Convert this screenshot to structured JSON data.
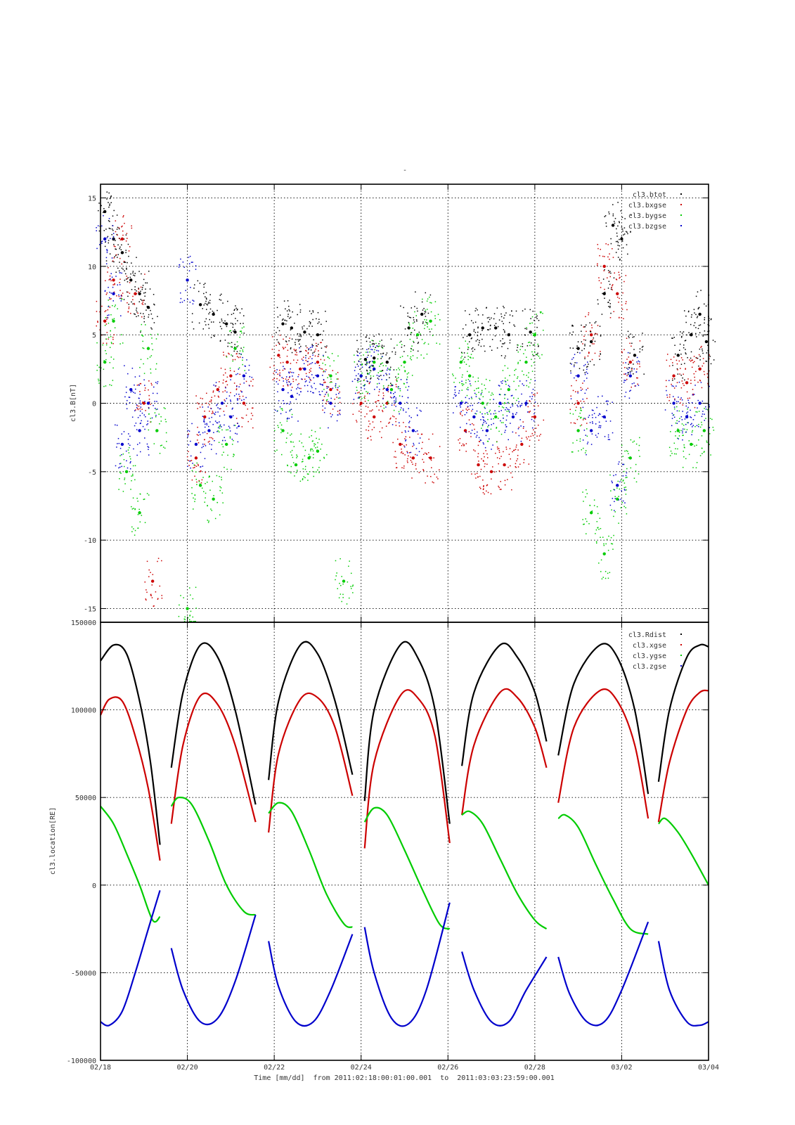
{
  "page_mark": "-",
  "chart_data": [
    {
      "type": "scatter",
      "title": "",
      "xlabel": "",
      "ylabel": "cl3.B[nT]",
      "xlim": [
        0,
        14
      ],
      "ylim": [
        -16,
        16
      ],
      "grid": true,
      "legend_position": "top-right",
      "yticks": [
        15,
        10,
        5,
        0,
        -5,
        -10,
        -15
      ],
      "ytick_labels": [
        "15",
        "10",
        "5",
        "0",
        "-5",
        "-10",
        "-15"
      ],
      "colors": {
        "cl3.btot": "#000000",
        "cl3.bxgse": "#cc0000",
        "cl3.bygse": "#00cc00",
        "cl3.bzgse": "#0000cc"
      },
      "legend": [
        "cl3.btot",
        "cl3.bxgse",
        "cl3.bygse",
        "cl3.bzgse"
      ],
      "series": [
        {
          "name": "cl3.btot",
          "x": [
            0.1,
            0.3,
            0.5,
            0.7,
            0.9,
            1.1,
            2.3,
            2.6,
            2.9,
            3.1,
            4.2,
            4.4,
            4.7,
            5.0,
            6.1,
            6.3,
            6.6,
            7.1,
            7.4,
            8.5,
            8.8,
            9.1,
            9.4,
            9.9,
            11.0,
            11.3,
            11.6,
            11.8,
            12.0,
            12.3,
            13.3,
            13.6,
            13.8,
            13.95
          ],
          "y": [
            14,
            12,
            11,
            9,
            8,
            7,
            7.2,
            6.5,
            5.8,
            5.2,
            5.8,
            5.5,
            5.2,
            5.0,
            3.2,
            3.3,
            3.0,
            5.5,
            6.5,
            5.0,
            5.5,
            5.5,
            5.0,
            5.2,
            4.0,
            4.5,
            8.0,
            13.0,
            12.0,
            3.5,
            3.5,
            5.0,
            6.5,
            4.5
          ]
        },
        {
          "name": "cl3.bxgse",
          "x": [
            0.1,
            0.3,
            0.5,
            0.8,
            1.0,
            1.2,
            2.2,
            2.4,
            2.7,
            3.0,
            3.3,
            4.1,
            4.3,
            4.6,
            5.0,
            5.3,
            6.0,
            6.3,
            6.6,
            6.9,
            7.2,
            7.6,
            8.4,
            8.7,
            9.0,
            9.3,
            9.7,
            10.0,
            11.0,
            11.3,
            11.6,
            11.9,
            12.2,
            13.2,
            13.5,
            13.8
          ],
          "y": [
            6,
            9,
            12,
            8,
            0,
            -13,
            -4,
            -1,
            1,
            2,
            0,
            3.5,
            3.0,
            2.5,
            3.0,
            1.0,
            0,
            -1,
            0,
            -3,
            -4,
            -4,
            -2,
            -4.5,
            -5,
            -4.5,
            -3,
            -1,
            0,
            5,
            10,
            8,
            3,
            2,
            1.5,
            2.5
          ]
        },
        {
          "name": "cl3.bygse",
          "x": [
            0.1,
            0.3,
            0.6,
            0.9,
            1.1,
            1.3,
            2.0,
            2.3,
            2.6,
            2.9,
            3.1,
            4.2,
            4.5,
            4.8,
            5.0,
            5.3,
            5.6,
            6.0,
            6.3,
            6.7,
            7.0,
            7.3,
            7.6,
            8.3,
            8.5,
            8.8,
            9.1,
            9.4,
            9.8,
            10.0,
            11.0,
            11.3,
            11.6,
            11.9,
            12.2,
            13.3,
            13.6,
            13.9
          ],
          "y": [
            3,
            6,
            -5,
            -8,
            4,
            -2,
            -15,
            -6,
            -7,
            -3,
            4,
            -2,
            -4.5,
            -4,
            -3.5,
            2,
            -13,
            2,
            3,
            1,
            3,
            5,
            6,
            3,
            2,
            0,
            -1,
            1,
            3,
            5,
            -2,
            -8,
            -11,
            -7,
            -4,
            -2,
            -3,
            -2
          ]
        },
        {
          "name": "cl3.bzgse",
          "x": [
            0.1,
            0.3,
            0.5,
            0.7,
            0.9,
            1.1,
            2.0,
            2.2,
            2.5,
            2.8,
            3.0,
            3.3,
            4.2,
            4.4,
            4.7,
            5.0,
            5.3,
            6.0,
            6.3,
            6.6,
            6.9,
            7.2,
            8.3,
            8.6,
            8.9,
            9.2,
            9.5,
            9.8,
            11.0,
            11.3,
            11.6,
            11.9,
            12.2,
            13.2,
            13.5,
            13.8
          ],
          "y": [
            12,
            8,
            -3,
            1,
            -2,
            0,
            9,
            -3,
            -2,
            0,
            -1,
            2,
            1.0,
            0.5,
            2.5,
            2.0,
            0,
            2,
            2.5,
            1,
            0,
            -2,
            0,
            -1,
            -2,
            0,
            -1,
            0,
            2,
            -2,
            -1,
            -6,
            2,
            0,
            -1,
            0
          ]
        }
      ]
    },
    {
      "type": "line",
      "title": "",
      "xlabel": "Time [mm/dd]  from 2011:02:18:00:01:00.001  to  2011:03:03:23:59:00.001",
      "ylabel": "cl3.location[RE]",
      "xlim": [
        0,
        14
      ],
      "ylim": [
        -100000,
        150000
      ],
      "grid": true,
      "legend_position": "top-right",
      "yticks": [
        150000,
        100000,
        50000,
        0,
        -50000,
        -100000
      ],
      "ytick_labels": [
        "150000",
        "100000",
        "50000",
        "0",
        "-50000",
        "-100000"
      ],
      "xticks": [
        0,
        2,
        4,
        6,
        8,
        10,
        12,
        14
      ],
      "xtick_labels": [
        "02/18",
        "02/20",
        "02/22",
        "02/24",
        "02/26",
        "02/28",
        "03/02",
        "03/04"
      ],
      "colors": {
        "cl3.Rdist": "#000000",
        "cl3.xgse": "#cc0000",
        "cl3.ygse": "#00cc00",
        "cl3.zgse": "#0000cc"
      },
      "legend": [
        "cl3.Rdist",
        "cl3.xgse",
        "cl3.ygse",
        "cl3.zgse"
      ],
      "orbit_period_days": 2.36,
      "data_gaps_days": [
        [
          1.37,
          1.63
        ],
        [
          3.57,
          3.87
        ],
        [
          5.8,
          6.08
        ],
        [
          8.04,
          8.32
        ],
        [
          10.27,
          10.54
        ],
        [
          12.61,
          12.85
        ]
      ],
      "series": [
        {
          "name": "cl3.Rdist",
          "segments": [
            {
              "x": [
                0.0,
                0.3,
                0.6,
                0.9,
                1.15,
                1.37
              ],
              "y": [
                128000,
                137000,
                132000,
                105000,
                70000,
                23000
              ]
            },
            {
              "x": [
                1.63,
                1.9,
                2.3,
                2.7,
                3.1,
                3.57
              ],
              "y": [
                67000,
                110000,
                137000,
                130000,
                100000,
                46000
              ]
            },
            {
              "x": [
                3.87,
                4.1,
                4.6,
                5.0,
                5.4,
                5.8
              ],
              "y": [
                60000,
                105000,
                137000,
                132000,
                105000,
                63000
              ]
            },
            {
              "x": [
                6.08,
                6.3,
                6.9,
                7.3,
                7.7,
                8.04
              ],
              "y": [
                48000,
                100000,
                137000,
                130000,
                100000,
                35000
              ]
            },
            {
              "x": [
                8.32,
                8.6,
                9.2,
                9.6,
                10.0,
                10.27
              ],
              "y": [
                68000,
                110000,
                137000,
                130000,
                110000,
                82000
              ]
            },
            {
              "x": [
                10.54,
                10.9,
                11.5,
                11.9,
                12.3,
                12.61
              ],
              "y": [
                74000,
                115000,
                137000,
                130000,
                100000,
                52000
              ]
            },
            {
              "x": [
                12.85,
                13.1,
                13.5,
                13.8,
                14.0
              ],
              "y": [
                59000,
                100000,
                130000,
                137000,
                136000
              ]
            }
          ]
        },
        {
          "name": "cl3.xgse",
          "segments": [
            {
              "x": [
                0.0,
                0.2,
                0.5,
                0.8,
                1.1,
                1.37
              ],
              "y": [
                97000,
                106000,
                105000,
                85000,
                55000,
                14000
              ]
            },
            {
              "x": [
                1.63,
                1.9,
                2.3,
                2.7,
                3.1,
                3.57
              ],
              "y": [
                35000,
                80000,
                108000,
                103000,
                80000,
                36000
              ]
            },
            {
              "x": [
                3.87,
                4.1,
                4.6,
                5.0,
                5.4,
                5.8
              ],
              "y": [
                30000,
                75000,
                106000,
                107000,
                90000,
                51000
              ]
            },
            {
              "x": [
                6.08,
                6.3,
                6.9,
                7.3,
                7.7,
                8.04
              ],
              "y": [
                21000,
                70000,
                108000,
                107000,
                85000,
                24000
              ]
            },
            {
              "x": [
                8.32,
                8.6,
                9.2,
                9.6,
                10.0,
                10.27
              ],
              "y": [
                40000,
                80000,
                110000,
                107000,
                90000,
                67000
              ]
            },
            {
              "x": [
                10.54,
                10.9,
                11.5,
                11.9,
                12.3,
                12.61
              ],
              "y": [
                47000,
                90000,
                111000,
                105000,
                80000,
                38000
              ]
            },
            {
              "x": [
                12.85,
                13.1,
                13.5,
                13.8,
                14.0
              ],
              "y": [
                36000,
                70000,
                100000,
                110000,
                111000
              ]
            }
          ]
        },
        {
          "name": "cl3.ygse",
          "segments": [
            {
              "x": [
                0.0,
                0.3,
                0.6,
                0.9,
                1.2,
                1.37
              ],
              "y": [
                45000,
                35000,
                18000,
                0,
                -20000,
                -18000
              ]
            },
            {
              "x": [
                1.63,
                1.8,
                2.1,
                2.5,
                2.9,
                3.3,
                3.57
              ],
              "y": [
                45000,
                50000,
                46000,
                25000,
                0,
                -15000,
                -17000
              ]
            },
            {
              "x": [
                3.87,
                4.1,
                4.4,
                4.8,
                5.2,
                5.6,
                5.8
              ],
              "y": [
                41000,
                47000,
                42000,
                20000,
                -5000,
                -22000,
                -24000
              ]
            },
            {
              "x": [
                6.08,
                6.3,
                6.6,
                7.0,
                7.4,
                7.8,
                8.04
              ],
              "y": [
                36000,
                44000,
                40000,
                20000,
                -2000,
                -22000,
                -25000
              ]
            },
            {
              "x": [
                8.32,
                8.5,
                8.8,
                9.2,
                9.6,
                10.0,
                10.27
              ],
              "y": [
                40000,
                42000,
                35000,
                15000,
                -5000,
                -20000,
                -25000
              ]
            },
            {
              "x": [
                10.54,
                10.7,
                11.0,
                11.4,
                11.8,
                12.2,
                12.61
              ],
              "y": [
                38000,
                40000,
                33000,
                12000,
                -8000,
                -25000,
                -28000
              ]
            },
            {
              "x": [
                12.85,
                13.0,
                13.3,
                13.6,
                14.0
              ],
              "y": [
                35000,
                38000,
                30000,
                18000,
                0
              ]
            }
          ]
        },
        {
          "name": "cl3.zgse",
          "segments": [
            {
              "x": [
                0.0,
                0.2,
                0.5,
                0.8,
                1.1,
                1.37
              ],
              "y": [
                -78000,
                -80000,
                -72000,
                -50000,
                -25000,
                -3000
              ]
            },
            {
              "x": [
                1.63,
                1.9,
                2.3,
                2.7,
                3.1,
                3.57
              ],
              "y": [
                -36000,
                -60000,
                -78000,
                -76000,
                -55000,
                -17000
              ]
            },
            {
              "x": [
                3.87,
                4.1,
                4.5,
                4.9,
                5.3,
                5.8
              ],
              "y": [
                -32000,
                -58000,
                -78000,
                -78000,
                -60000,
                -28000
              ]
            },
            {
              "x": [
                6.08,
                6.3,
                6.7,
                7.1,
                7.5,
                8.04
              ],
              "y": [
                -24000,
                -50000,
                -76000,
                -79000,
                -60000,
                -10000
              ]
            },
            {
              "x": [
                8.32,
                8.6,
                9.0,
                9.4,
                9.8,
                10.27
              ],
              "y": [
                -38000,
                -60000,
                -78000,
                -78000,
                -60000,
                -41000
              ]
            },
            {
              "x": [
                10.54,
                10.8,
                11.2,
                11.6,
                12.0,
                12.61
              ],
              "y": [
                -41000,
                -62000,
                -78000,
                -78000,
                -60000,
                -21000
              ]
            },
            {
              "x": [
                12.85,
                13.1,
                13.5,
                13.8,
                14.0
              ],
              "y": [
                -32000,
                -60000,
                -78000,
                -80000,
                -78000
              ]
            }
          ]
        }
      ]
    }
  ]
}
